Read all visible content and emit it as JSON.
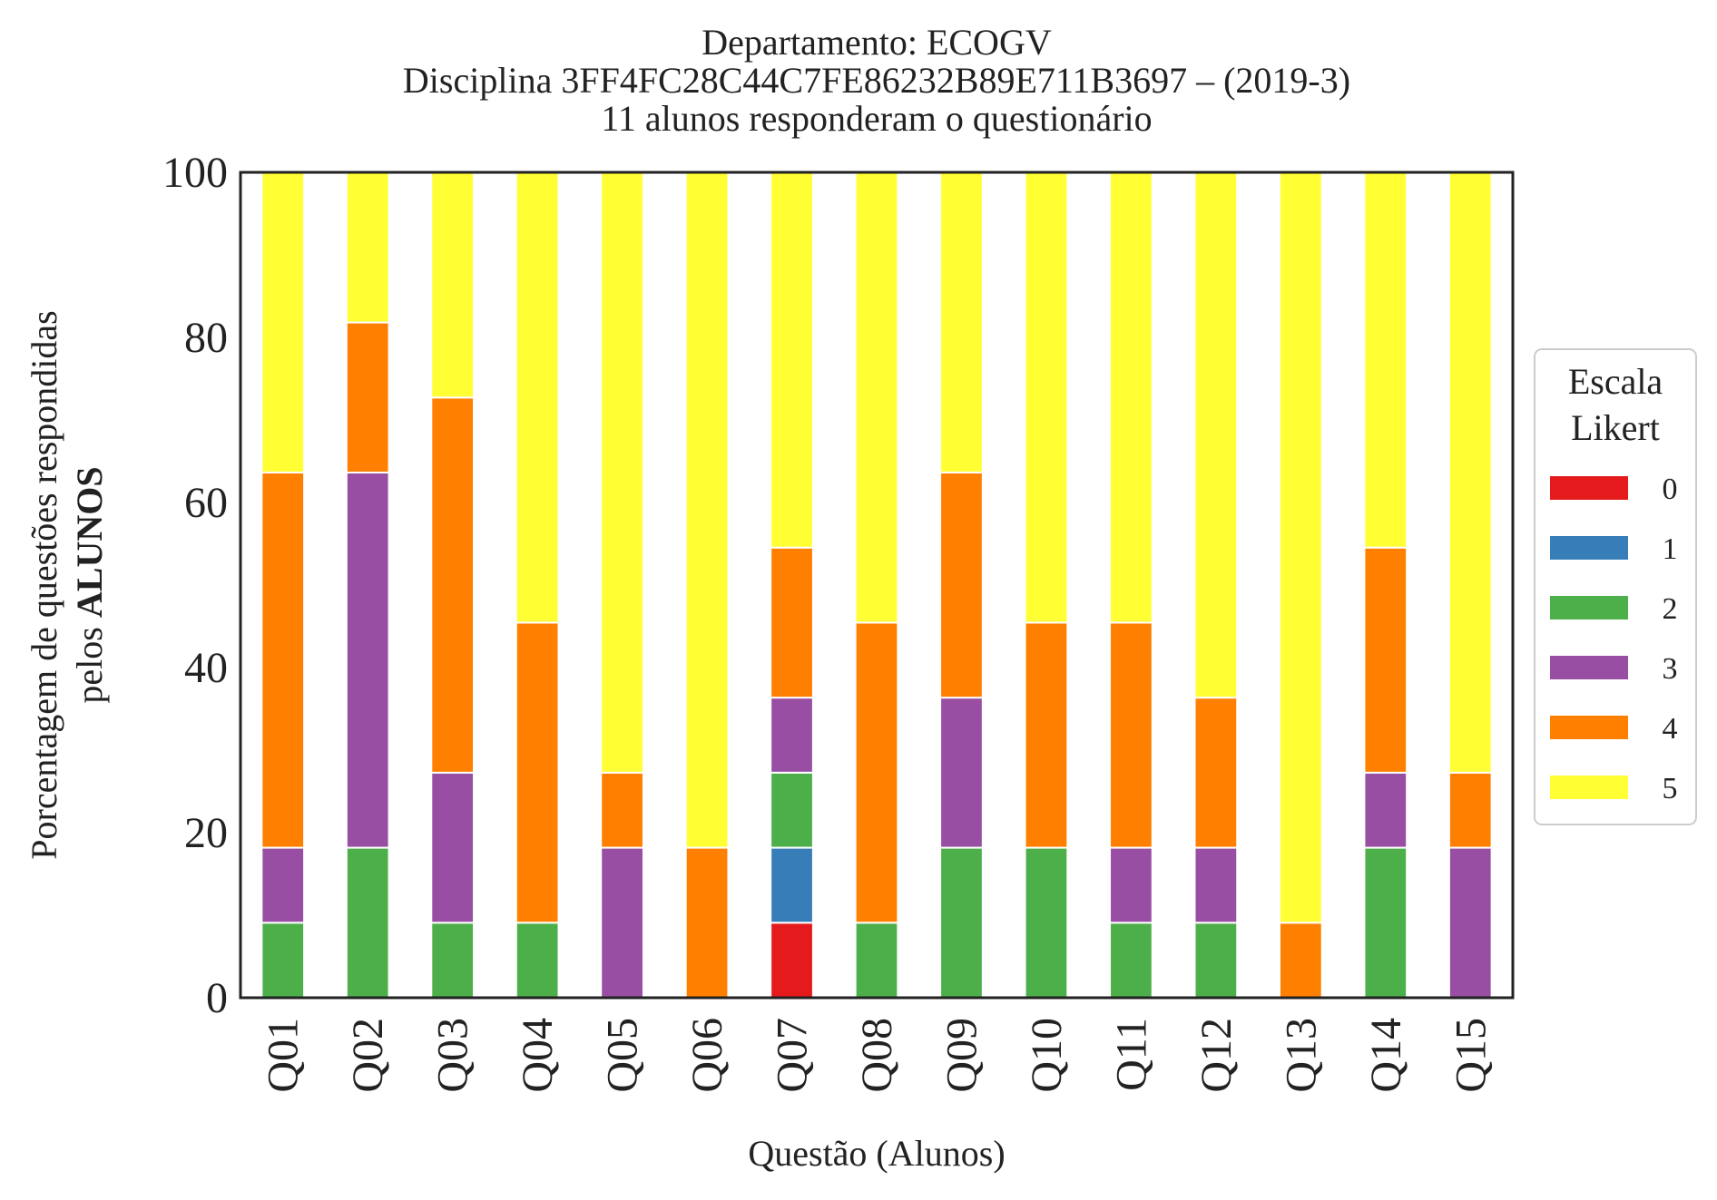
{
  "chart_data": {
    "type": "bar",
    "stacked": true,
    "title_lines": [
      "Departamento: ECOGV",
      "Disciplina 3FF4FC28C44C7FE86232B89E711B3697 – (2019-3)",
      "11 alunos responderam o questionário"
    ],
    "xlabel": "Questão (Alunos)",
    "ylabel_line1": "Porcentagem de questões respondidas",
    "ylabel_line2_prefix": "pelos ",
    "ylabel_line2_bold": "ALUNOS",
    "ylim": [
      0,
      100
    ],
    "yticks": [
      "0",
      "20",
      "40",
      "60",
      "80",
      "100"
    ],
    "categories": [
      "Q01",
      "Q02",
      "Q03",
      "Q04",
      "Q05",
      "Q06",
      "Q07",
      "Q08",
      "Q09",
      "Q10",
      "Q11",
      "Q12",
      "Q13",
      "Q14",
      "Q15"
    ],
    "legend": {
      "title_line1": "Escala",
      "title_line2": "Likert",
      "placement": "center-right outside"
    },
    "series": [
      {
        "name": "0",
        "color": "#e41a1c",
        "values": [
          0,
          0,
          0,
          0,
          0,
          0,
          9.09,
          0,
          0,
          0,
          0,
          0,
          0,
          0,
          0
        ]
      },
      {
        "name": "1",
        "color": "#377eb8",
        "values": [
          0,
          0,
          0,
          0,
          0,
          0,
          9.09,
          0,
          0,
          0,
          0,
          0,
          0,
          0,
          0
        ]
      },
      {
        "name": "2",
        "color": "#4daf4a",
        "values": [
          9.09,
          18.18,
          9.09,
          9.09,
          0,
          0,
          9.09,
          9.09,
          18.18,
          18.18,
          9.09,
          9.09,
          0,
          18.18,
          0
        ]
      },
      {
        "name": "3",
        "color": "#984ea3",
        "values": [
          9.09,
          45.45,
          18.18,
          0,
          18.18,
          0,
          9.09,
          0,
          18.18,
          0,
          9.09,
          9.09,
          0,
          9.09,
          18.18
        ]
      },
      {
        "name": "4",
        "color": "#ff7f00",
        "values": [
          45.45,
          18.18,
          45.45,
          36.36,
          9.09,
          18.18,
          18.18,
          36.36,
          27.27,
          27.27,
          27.27,
          18.18,
          9.09,
          27.27,
          9.09
        ]
      },
      {
        "name": "5",
        "color": "#ffff33",
        "values": [
          36.36,
          18.18,
          27.27,
          54.55,
          72.73,
          81.82,
          45.45,
          54.55,
          36.36,
          54.55,
          54.55,
          63.64,
          90.91,
          45.45,
          72.73
        ]
      }
    ]
  }
}
